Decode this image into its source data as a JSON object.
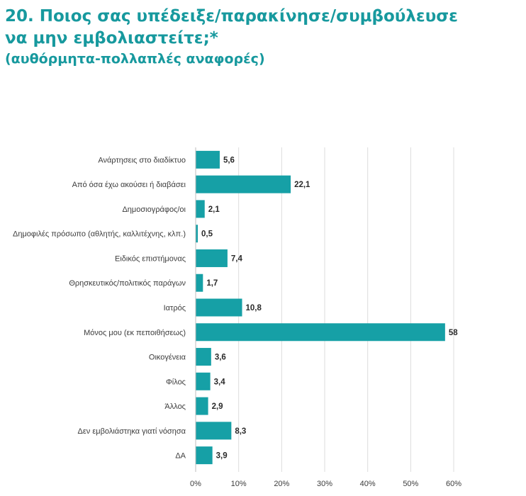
{
  "title_line1": "20. Ποιος σας υπέδειξε/παρακίνησε/συμβούλευσε",
  "title_line2": "να μην εμβολιαστείτε;*",
  "subtitle": "(αυθόρμητα-πολλαπλές αναφορές)",
  "colors": {
    "bar": "#16a0a6",
    "title": "#17999e",
    "grid": "#dcdcdc"
  },
  "chart_data": {
    "type": "bar",
    "orientation": "horizontal",
    "categories": [
      "Ανάρτησεις στο διαδίκτυο",
      "Από όσα έχω ακούσει ή διαβάσει",
      "Δημοσιογράφος/οι",
      "Δημοφιλές πρόσωπο (αθλητής, καλλιτέχνης, κλπ.)",
      "Ειδικός επιστήμονας",
      "Θρησκευτικός/πολιτικός παράγων",
      "Ιατρός",
      "Μόνος μου (εκ πεποιθήσεως)",
      "Οικογένεια",
      "Φίλος",
      "Άλλος",
      "Δεν εμβολιάστηκα γιατί νόσησα",
      "ΔΑ"
    ],
    "values": [
      5.6,
      22.1,
      2.1,
      0.5,
      7.4,
      1.7,
      10.8,
      58,
      3.6,
      3.4,
      2.9,
      8.3,
      3.9
    ],
    "value_labels": [
      "5,6",
      "22,1",
      "2,1",
      "0,5",
      "7,4",
      "1,7",
      "10,8",
      "58",
      "3,6",
      "3,4",
      "2,9",
      "8,3",
      "3,9"
    ],
    "xlim": [
      0,
      60
    ],
    "xticks": [
      0,
      10,
      20,
      30,
      40,
      50,
      60
    ],
    "xtick_labels": [
      "0%",
      "10%",
      "20%",
      "30%",
      "40%",
      "50%",
      "60%"
    ],
    "grid": true,
    "legend": false
  }
}
